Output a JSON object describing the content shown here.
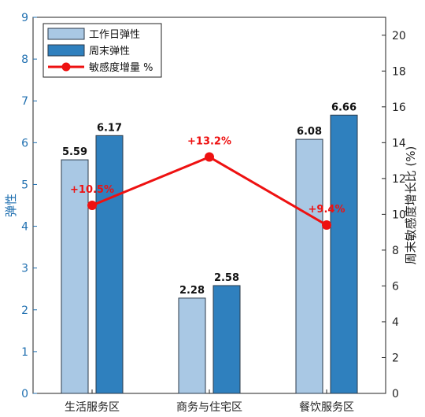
{
  "chart_data": {
    "type": "bar",
    "categories": [
      "生活服务区",
      "商务与住宅区",
      "餐饮服务区"
    ],
    "series": [
      {
        "name": "工作日弹性",
        "values": [
          5.59,
          2.28,
          6.08
        ],
        "labels": [
          "5.59",
          "2.28",
          "6.08"
        ],
        "color": "#a9c8e4",
        "axis": "left"
      },
      {
        "name": "周末弹性",
        "values": [
          6.17,
          2.58,
          6.66
        ],
        "labels": [
          "6.17",
          "2.58",
          "6.66"
        ],
        "color": "#2f80be",
        "axis": "left"
      },
      {
        "name": "敏感度增量 %",
        "type": "line",
        "values": [
          10.5,
          13.2,
          9.4
        ],
        "labels": [
          "+10.5%",
          "+13.2%",
          "+9.4%"
        ],
        "color": "#ee1111",
        "axis": "right"
      }
    ],
    "ylabel": "弹性",
    "ylabel_right": "周末敏感度增长比 (%)",
    "ylim": [
      0,
      9
    ],
    "ylim_right": [
      0,
      21
    ],
    "yticks": [
      "0",
      "1",
      "2",
      "3",
      "4",
      "5",
      "6",
      "7",
      "8",
      "9"
    ],
    "yticks_right": [
      "0",
      "2",
      "4",
      "6",
      "8",
      "10",
      "12",
      "14",
      "16",
      "18",
      "20"
    ],
    "grid": false,
    "legend": "top-left",
    "colors": {
      "left_axis": "#1f6fb0",
      "right_axis": "#222222",
      "frame": "#222222"
    }
  }
}
